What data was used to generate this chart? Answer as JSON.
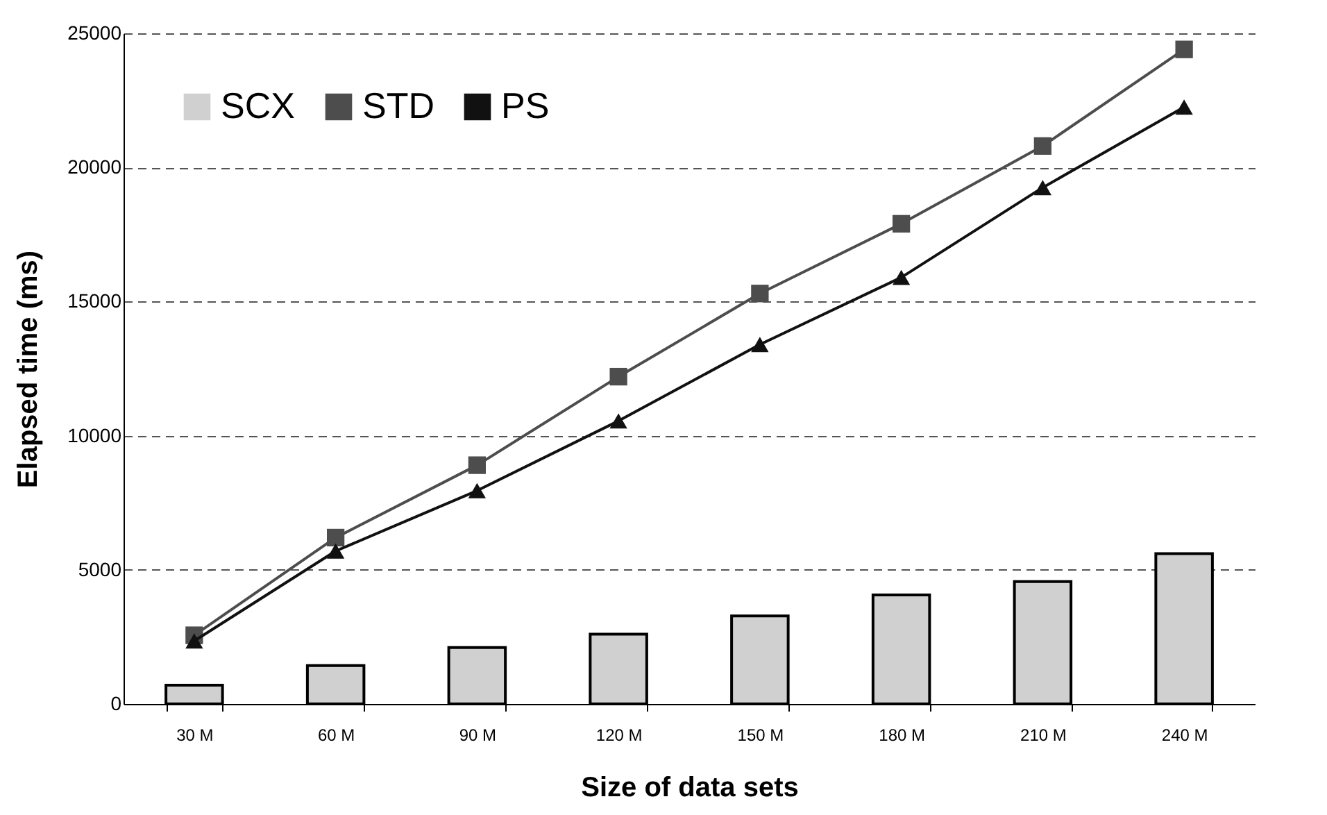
{
  "chart_data": {
    "type": "bar",
    "xlabel": "Size of data sets",
    "ylabel": "Elapsed time (ms)",
    "categories": [
      "30 M",
      "60 M",
      "90 M",
      "120 M",
      "150 M",
      "180 M",
      "210 M",
      "240 M"
    ],
    "series": [
      {
        "name": "SCX",
        "color": "#d0d0d0",
        "values": [
          700,
          1430,
          2100,
          2600,
          3280,
          4060,
          4560,
          5600
        ]
      },
      {
        "name": "STD",
        "type": "line",
        "marker": "square",
        "color": "#4d4d4d",
        "values": [
          2560,
          6200,
          8900,
          12200,
          15300,
          17900,
          20800,
          24400
        ]
      },
      {
        "name": "PS",
        "type": "line",
        "marker": "triangle",
        "color": "#111111",
        "values": [
          2350,
          5700,
          7950,
          10550,
          13400,
          15900,
          19250,
          22250
        ]
      }
    ],
    "ylim": [
      0,
      25000
    ],
    "yticks": [
      0,
      5000,
      10000,
      15000,
      20000,
      25000
    ],
    "grid": "y",
    "legend": "top left"
  }
}
